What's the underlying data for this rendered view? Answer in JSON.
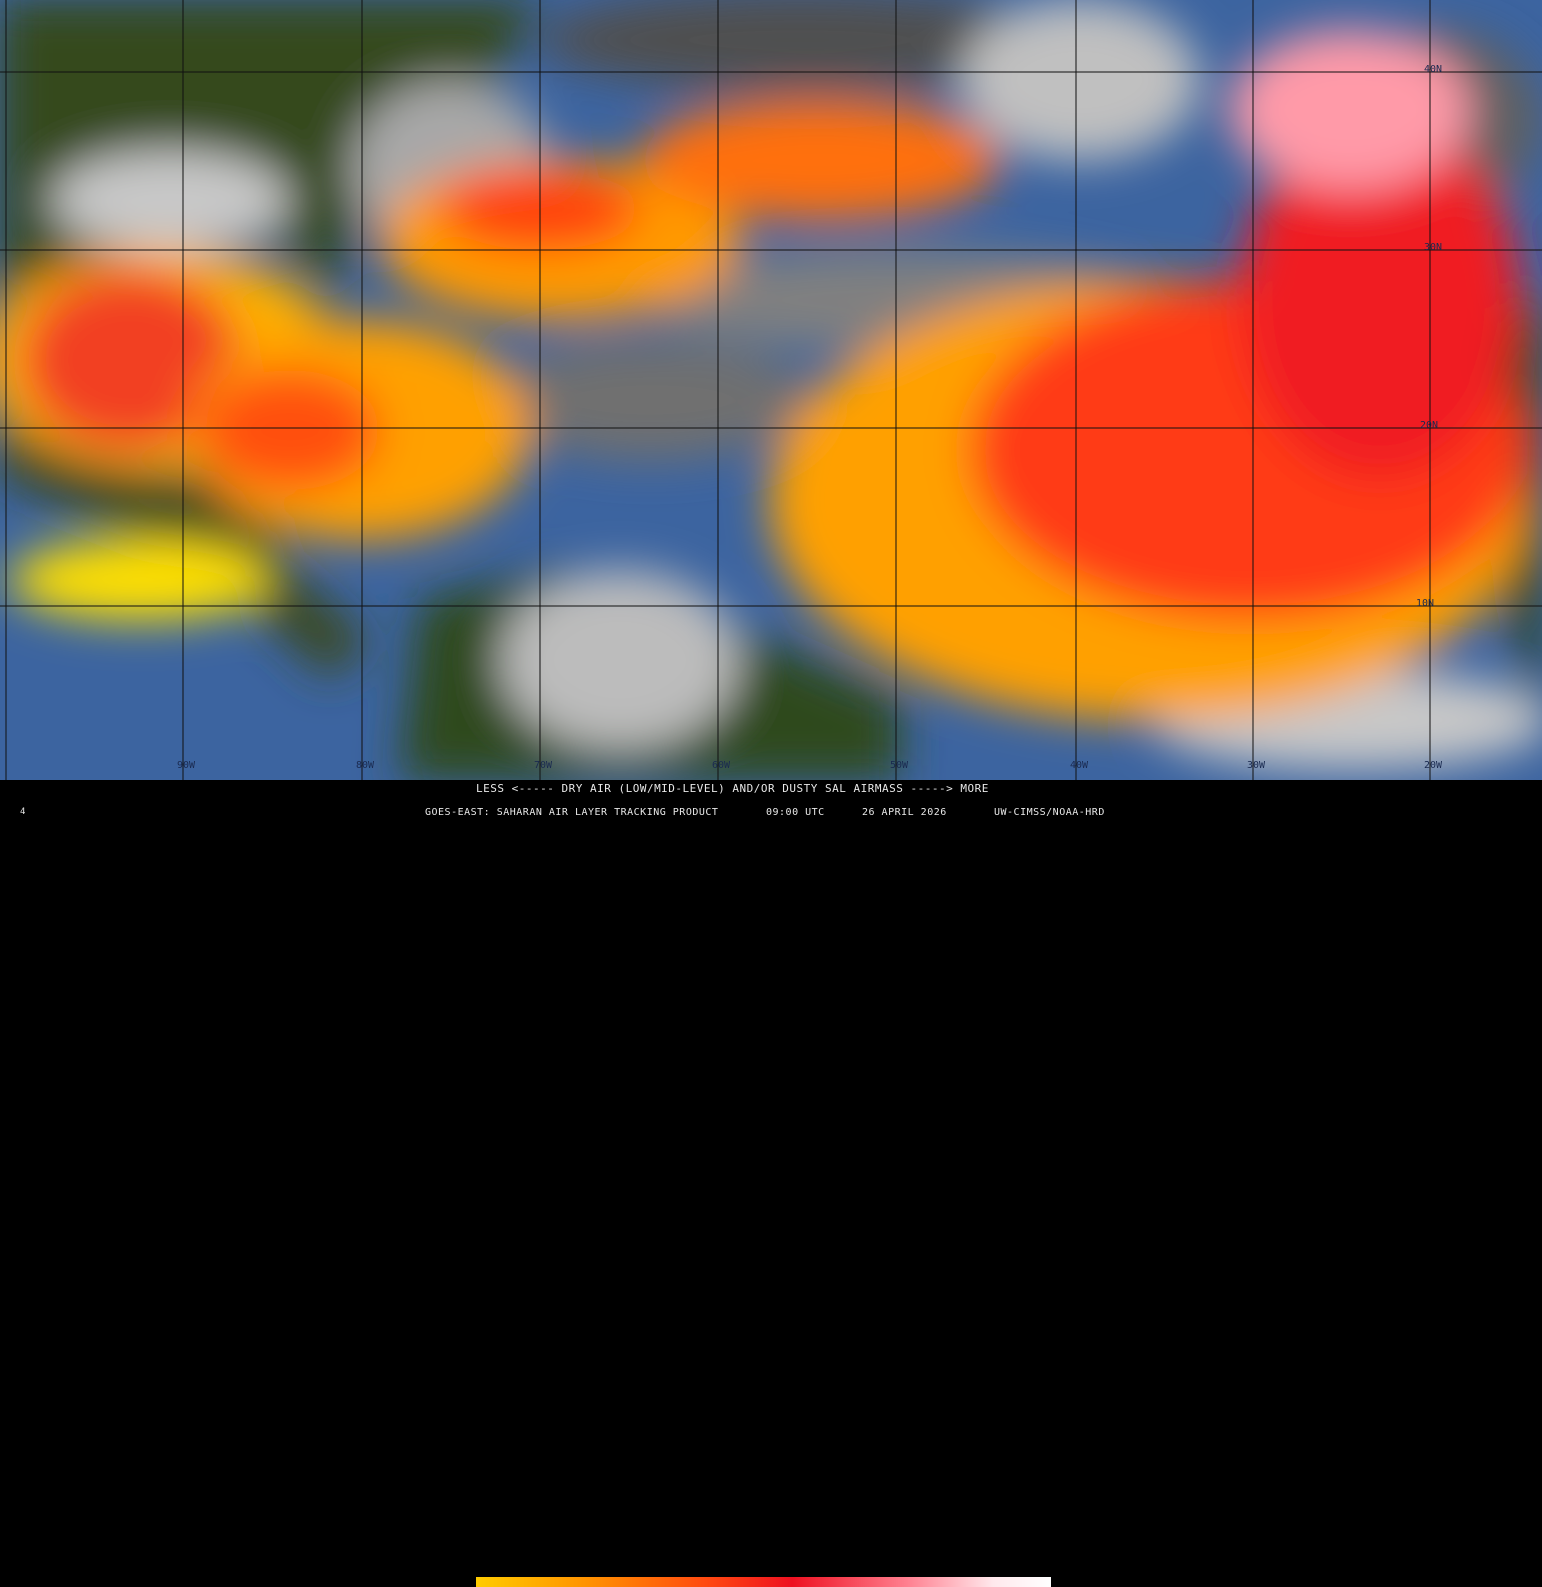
{
  "map": {
    "product": "GOES-EAST: SAHARAN AIR LAYER TRACKING PRODUCT",
    "longitude_labels": [
      "90W",
      "80W",
      "70W",
      "60W",
      "50W",
      "40W",
      "30W",
      "20W"
    ],
    "latitude_labels": [
      "40N",
      "30N",
      "20N",
      "10N"
    ],
    "colors": {
      "ocean": "#3c64a0",
      "land": "#2c4216",
      "cloud": "#bcbcbc",
      "sal_low": "#ffcc00",
      "sal_mid": "#ff5010",
      "sal_high": "#ffb0c0"
    }
  },
  "legend": {
    "scale_label": "LESS <----- DRY AIR (LOW/MID-LEVEL) AND/OR DUSTY SAL AIRMASS -----> MORE",
    "colorbar": [
      "#ffcc00",
      "#ff9000",
      "#ff4a10",
      "#ee1020",
      "#ff8090",
      "#ffffff"
    ]
  },
  "footer": {
    "frame_number": "4",
    "product": "GOES-EAST: SAHARAN AIR LAYER TRACKING PRODUCT",
    "time": "09:00 UTC",
    "date": "26 APRIL 2026",
    "credit": "UW-CIMSS/NOAA-HRD"
  }
}
